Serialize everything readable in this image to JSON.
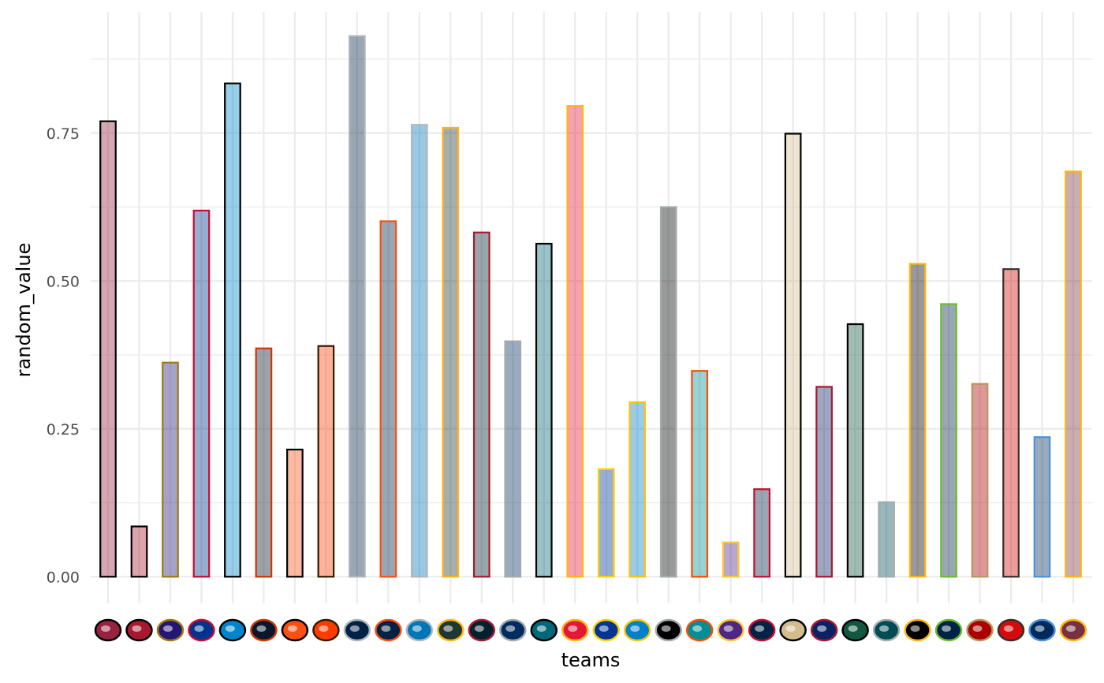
{
  "chart_data": {
    "type": "bar",
    "title": "",
    "xlabel": "teams",
    "ylabel": "random_value",
    "ylim": [
      -0.045,
      0.955
    ],
    "y_ticks": [
      0.0,
      0.25,
      0.5,
      0.75
    ],
    "y_tick_labels": [
      "0.00",
      "0.25",
      "0.50",
      "0.75"
    ],
    "grid": true,
    "categories": [
      "ARI",
      "ATL",
      "BAL",
      "BUF",
      "CAR",
      "CHI",
      "CIN",
      "CLE",
      "DAL",
      "DEN",
      "DET",
      "GB",
      "HOU",
      "IND",
      "JAX",
      "KC",
      "LA",
      "LAC",
      "LV",
      "MIA",
      "MIN",
      "NE",
      "NO",
      "NYG",
      "NYJ",
      "PHI",
      "PIT",
      "SEA",
      "SF",
      "TB",
      "TEN",
      "WAS"
    ],
    "values": [
      0.77,
      0.085,
      0.362,
      0.619,
      0.834,
      0.386,
      0.215,
      0.39,
      0.914,
      0.601,
      0.764,
      0.759,
      0.582,
      0.398,
      0.563,
      0.796,
      0.182,
      0.295,
      0.625,
      0.348,
      0.058,
      0.148,
      0.749,
      0.321,
      0.427,
      0.126,
      0.529,
      0.461,
      0.326,
      0.52,
      0.236,
      0.685
    ],
    "fill_colors": [
      "#97233F",
      "#A71930",
      "#241773",
      "#00338D",
      "#0085CA",
      "#0B162A",
      "#FB4F14",
      "#FF3C00",
      "#002244",
      "#002244",
      "#0076B6",
      "#203731",
      "#03202F",
      "#002C5F",
      "#006778",
      "#E31837",
      "#003594",
      "#0080C6",
      "#000000",
      "#008E97",
      "#4F2683",
      "#002244",
      "#D3BC8D",
      "#0B2265",
      "#125740",
      "#004C54",
      "#000000",
      "#002244",
      "#AA0000",
      "#D50A0A",
      "#002A5C",
      "#773141"
    ],
    "outline_colors": [
      "#000000",
      "#000000",
      "#9E7C0C",
      "#C60C30",
      "#000000",
      "#C83803",
      "#000000",
      "#311D00",
      "#B0B7BC",
      "#FB4F14",
      "#B0B7BC",
      "#FFB612",
      "#A71930",
      "#A2AAAD",
      "#000000",
      "#FFB612",
      "#FFD100",
      "#FFC20E",
      "#A5ACAF",
      "#FC4C02",
      "#FFC62F",
      "#C60C30",
      "#000000",
      "#A71930",
      "#000000",
      "#A5ACAF",
      "#FFB612",
      "#69BE28",
      "#B3995D",
      "#34302B",
      "#4B92DB",
      "#FFB612"
    ]
  }
}
